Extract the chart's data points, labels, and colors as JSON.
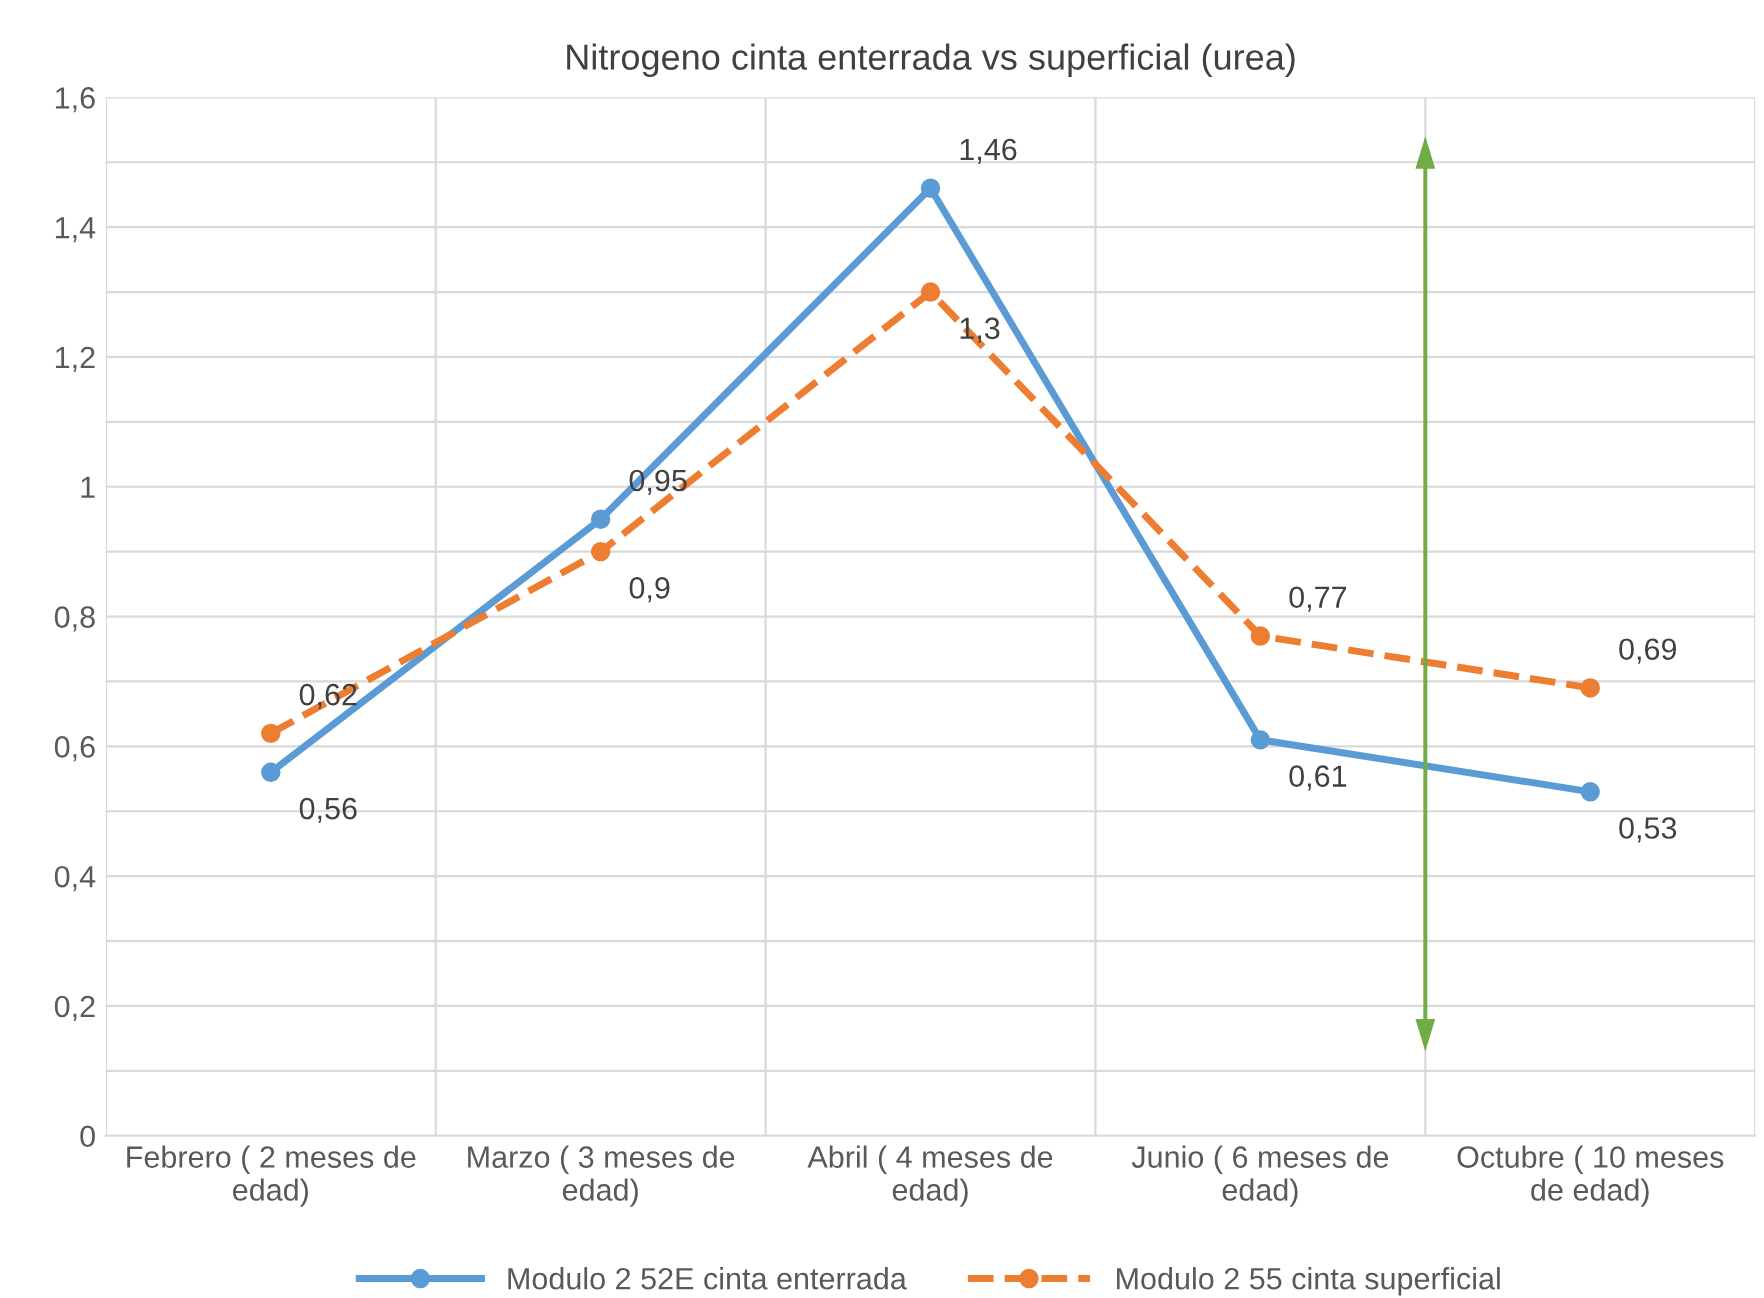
{
  "chart_data": {
    "type": "line",
    "title": "Nitrogeno cinta enterrada vs superficial (urea)",
    "categories": [
      "Febrero ( 2 meses de edad)",
      "Marzo ( 3 meses de edad)",
      "Abril ( 4 meses de edad)",
      "Junio ( 6 meses de edad)",
      "Octubre ( 10 meses de edad)"
    ],
    "series": [
      {
        "name": "Modulo 2 52E cinta enterrada",
        "color": "#5b9bd5",
        "values": [
          0.56,
          0.95,
          1.46,
          0.61,
          0.53
        ],
        "value_labels": [
          "0,56",
          "0,95",
          "1,46",
          "0,61",
          "0,53"
        ],
        "line_style": "solid"
      },
      {
        "name": "Modulo 2 55 cinta superficial",
        "color": "#ed7d31",
        "values": [
          0.62,
          0.9,
          1.3,
          0.77,
          0.69
        ],
        "value_labels": [
          "0,62",
          "0,9",
          "1,3",
          "0,77",
          "0,69"
        ],
        "line_style": "dashed"
      }
    ],
    "ylim": [
      0,
      1.6
    ],
    "yticks": [
      0,
      {
        "value": 0.1,
        "label": null
      },
      {
        "value": 0.2,
        "label": "0,2"
      },
      {
        "value": 0.3,
        "label": null
      },
      {
        "value": 0.4,
        "label": "0,4"
      },
      {
        "value": 0.5,
        "label": null
      },
      {
        "value": 0.6,
        "label": "0,6"
      },
      {
        "value": 0.7,
        "label": null
      },
      {
        "value": 0.8,
        "label": "0,8"
      },
      {
        "value": 0.9,
        "label": null
      },
      1,
      {
        "value": 1.1,
        "label": null
      },
      {
        "value": 1.2,
        "label": "1,2"
      },
      {
        "value": 1.3,
        "label": null
      },
      {
        "value": 1.4,
        "label": "1,4"
      },
      {
        "value": 1.5,
        "label": null
      },
      {
        "value": 1.6,
        "label": "1,6"
      }
    ],
    "grid": true,
    "legend": "bottom",
    "marker": "circle"
  }
}
